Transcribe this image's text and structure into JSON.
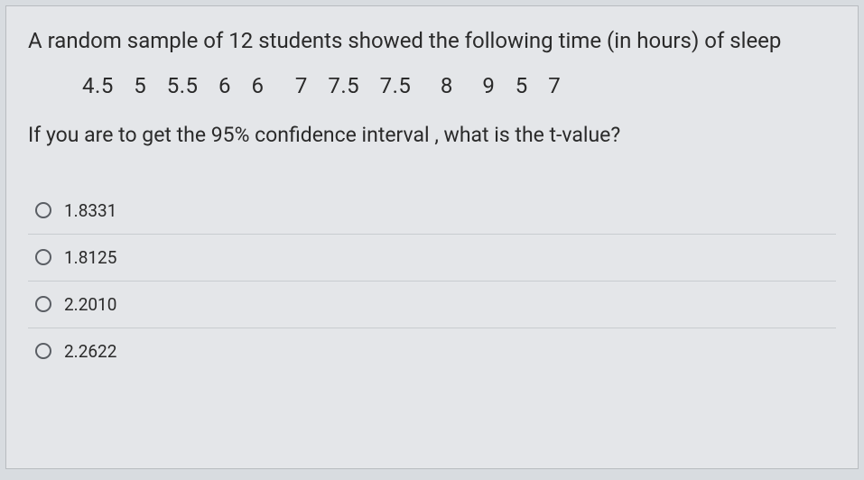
{
  "question": {
    "intro": "A random sample of 12 students showed the following time (in hours) of sleep",
    "data_values": [
      "4.5",
      "5",
      "5.5",
      "6",
      "6",
      "7",
      "7.5",
      "7.5",
      "8",
      "9",
      "5",
      "7"
    ],
    "prompt": "If you are to get the 95% confidence interval , what is the t-value?"
  },
  "options": [
    {
      "label": "1.8331"
    },
    {
      "label": "1.8125"
    },
    {
      "label": "2.2010"
    },
    {
      "label": "2.2622"
    }
  ],
  "colors": {
    "page_bg": "#d8dce0",
    "container_bg": "#e4e6e9",
    "text": "#2a2a2a",
    "divider": "#c8ccd0",
    "radio_border": "#5a5e64"
  },
  "typography": {
    "question_fontsize": 24,
    "option_fontsize": 19
  }
}
